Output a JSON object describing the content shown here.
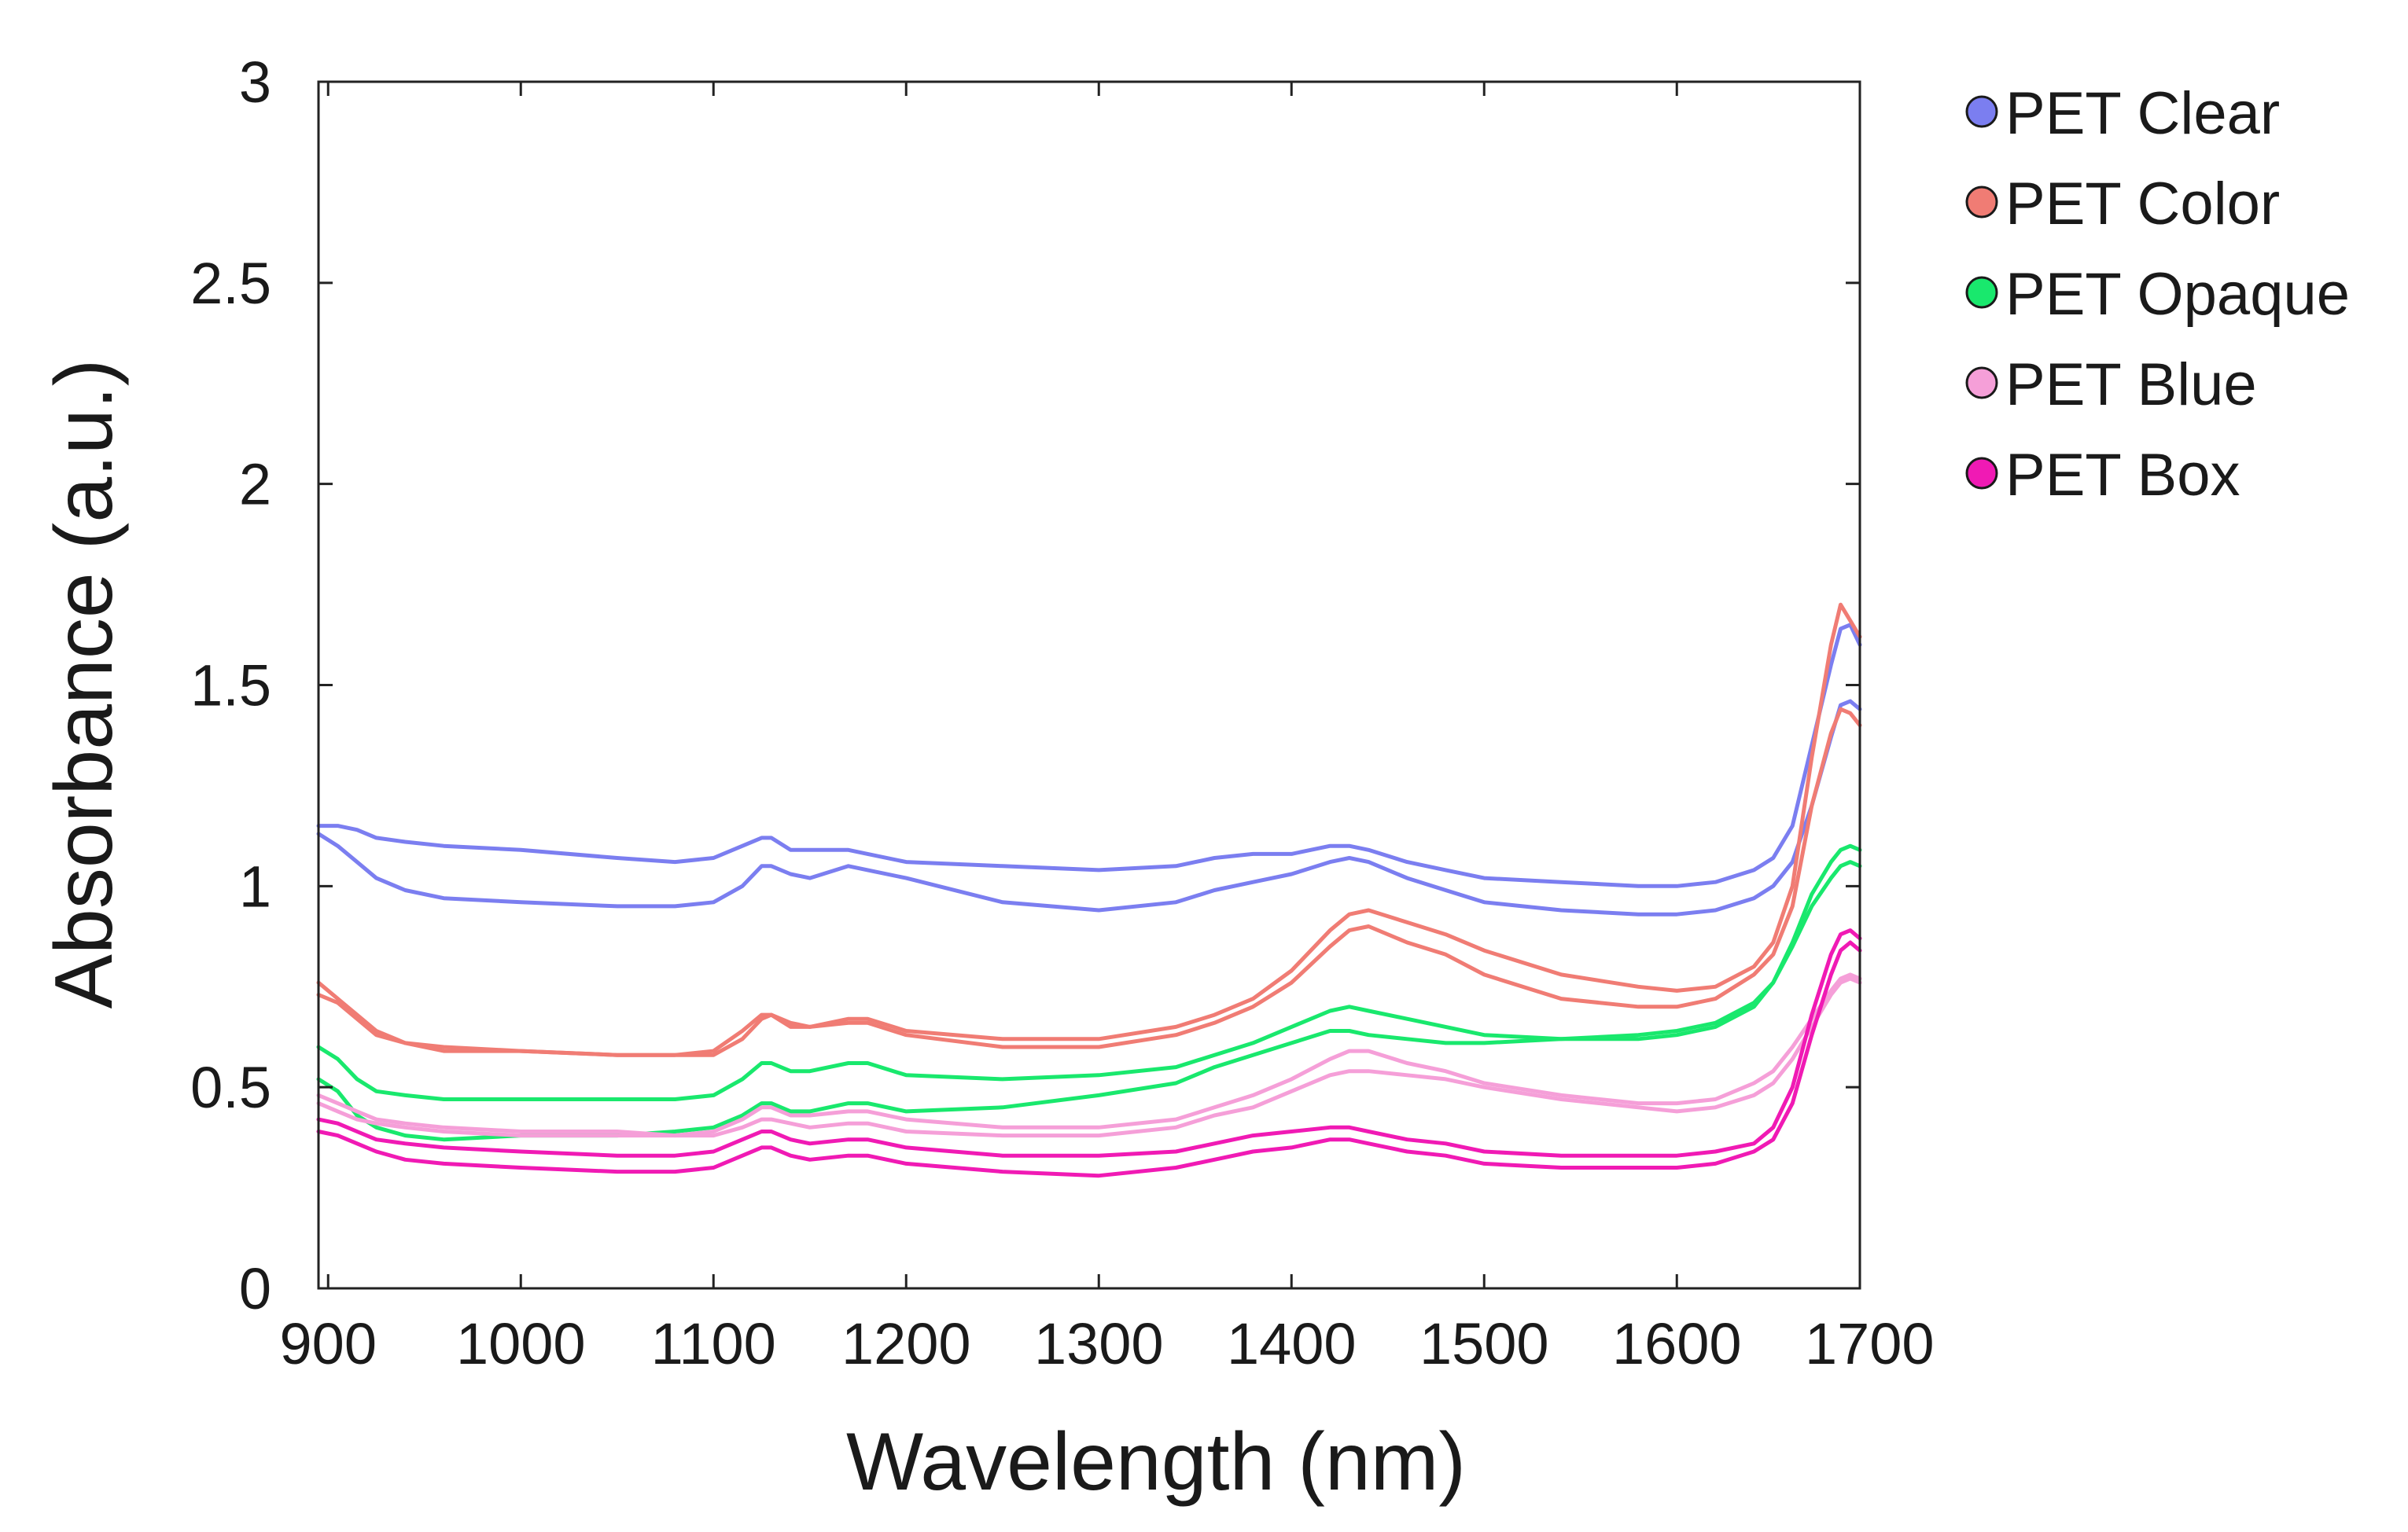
{
  "chart_data": {
    "type": "line",
    "title": "",
    "xlabel": "Wavelength (nm)",
    "ylabel": "Absorbance (a.u.)",
    "xlim": [
      895,
      1695
    ],
    "ylim": [
      0,
      3
    ],
    "grid": false,
    "legend_position": "outside-top-right",
    "x_ticks": [
      900,
      1000,
      1100,
      1200,
      1300,
      1400,
      1500,
      1600,
      1700
    ],
    "x_tick_labels": [
      "900",
      "1000",
      "1100",
      "1200",
      "1300",
      "1400",
      "1500",
      "1600",
      "1700"
    ],
    "y_ticks": [
      0,
      0.5,
      1,
      1.5,
      2,
      2.5,
      3
    ],
    "y_tick_labels": [
      "0",
      "0.5",
      "1",
      "1.5",
      "2",
      "2.5",
      "3"
    ],
    "x": [
      895,
      905,
      915,
      925,
      940,
      960,
      1000,
      1050,
      1080,
      1100,
      1115,
      1125,
      1130,
      1140,
      1150,
      1170,
      1180,
      1200,
      1250,
      1300,
      1340,
      1360,
      1380,
      1400,
      1420,
      1430,
      1440,
      1460,
      1480,
      1500,
      1540,
      1580,
      1600,
      1620,
      1640,
      1650,
      1660,
      1670,
      1680,
      1685,
      1690,
      1695
    ],
    "series": [
      {
        "name": "PET Clear",
        "color": "#7b7ef0",
        "values": [
          1.15,
          1.15,
          1.14,
          1.12,
          1.11,
          1.1,
          1.09,
          1.07,
          1.06,
          1.07,
          1.1,
          1.12,
          1.12,
          1.09,
          1.09,
          1.09,
          1.08,
          1.06,
          1.05,
          1.04,
          1.05,
          1.07,
          1.08,
          1.08,
          1.1,
          1.1,
          1.09,
          1.06,
          1.04,
          1.02,
          1.01,
          1.0,
          1.0,
          1.01,
          1.04,
          1.07,
          1.15,
          1.35,
          1.55,
          1.64,
          1.65,
          1.6
        ]
      },
      {
        "name": "PET Clear",
        "color": "#7b7ef0",
        "values": [
          1.13,
          1.1,
          1.06,
          1.02,
          0.99,
          0.97,
          0.96,
          0.95,
          0.95,
          0.96,
          1.0,
          1.05,
          1.05,
          1.03,
          1.02,
          1.05,
          1.04,
          1.02,
          0.96,
          0.94,
          0.96,
          0.99,
          1.01,
          1.03,
          1.06,
          1.07,
          1.06,
          1.02,
          0.99,
          0.96,
          0.94,
          0.93,
          0.93,
          0.94,
          0.97,
          1.0,
          1.06,
          1.2,
          1.37,
          1.45,
          1.46,
          1.44
        ]
      },
      {
        "name": "PET Color",
        "color": "#f07c74",
        "values": [
          0.76,
          0.72,
          0.68,
          0.64,
          0.61,
          0.6,
          0.59,
          0.58,
          0.58,
          0.59,
          0.64,
          0.68,
          0.68,
          0.66,
          0.65,
          0.67,
          0.67,
          0.64,
          0.62,
          0.62,
          0.65,
          0.68,
          0.72,
          0.79,
          0.89,
          0.93,
          0.94,
          0.91,
          0.88,
          0.84,
          0.78,
          0.75,
          0.74,
          0.75,
          0.8,
          0.86,
          1.0,
          1.32,
          1.6,
          1.7,
          1.66,
          1.62
        ]
      },
      {
        "name": "PET Color",
        "color": "#f07c74",
        "values": [
          0.73,
          0.71,
          0.67,
          0.63,
          0.61,
          0.59,
          0.59,
          0.58,
          0.58,
          0.58,
          0.62,
          0.67,
          0.68,
          0.65,
          0.65,
          0.66,
          0.66,
          0.63,
          0.6,
          0.6,
          0.63,
          0.66,
          0.7,
          0.76,
          0.85,
          0.89,
          0.9,
          0.86,
          0.83,
          0.78,
          0.72,
          0.7,
          0.7,
          0.72,
          0.78,
          0.83,
          0.95,
          1.2,
          1.38,
          1.44,
          1.43,
          1.4
        ]
      },
      {
        "name": "PET Opaque",
        "color": "#19e86d",
        "values": [
          0.6,
          0.57,
          0.52,
          0.49,
          0.48,
          0.47,
          0.47,
          0.47,
          0.47,
          0.48,
          0.52,
          0.56,
          0.56,
          0.54,
          0.54,
          0.56,
          0.56,
          0.53,
          0.52,
          0.53,
          0.55,
          0.58,
          0.61,
          0.65,
          0.69,
          0.7,
          0.69,
          0.67,
          0.65,
          0.63,
          0.62,
          0.62,
          0.63,
          0.65,
          0.7,
          0.76,
          0.86,
          0.98,
          1.06,
          1.09,
          1.1,
          1.09
        ]
      },
      {
        "name": "PET Opaque",
        "color": "#19e86d",
        "values": [
          0.52,
          0.49,
          0.43,
          0.4,
          0.38,
          0.37,
          0.38,
          0.38,
          0.39,
          0.4,
          0.43,
          0.46,
          0.46,
          0.44,
          0.44,
          0.46,
          0.46,
          0.44,
          0.45,
          0.48,
          0.51,
          0.55,
          0.58,
          0.61,
          0.64,
          0.64,
          0.63,
          0.62,
          0.61,
          0.61,
          0.62,
          0.63,
          0.64,
          0.66,
          0.71,
          0.76,
          0.85,
          0.95,
          1.02,
          1.05,
          1.06,
          1.05
        ]
      },
      {
        "name": "PET Blue",
        "color": "#f59fd8",
        "values": [
          0.48,
          0.46,
          0.44,
          0.42,
          0.41,
          0.4,
          0.39,
          0.39,
          0.38,
          0.39,
          0.42,
          0.45,
          0.45,
          0.43,
          0.43,
          0.44,
          0.44,
          0.42,
          0.4,
          0.4,
          0.42,
          0.45,
          0.48,
          0.52,
          0.57,
          0.59,
          0.59,
          0.56,
          0.54,
          0.51,
          0.48,
          0.46,
          0.46,
          0.47,
          0.51,
          0.54,
          0.6,
          0.67,
          0.74,
          0.77,
          0.78,
          0.77
        ]
      },
      {
        "name": "PET Blue",
        "color": "#f59fd8",
        "values": [
          0.46,
          0.44,
          0.42,
          0.41,
          0.4,
          0.39,
          0.38,
          0.38,
          0.38,
          0.38,
          0.4,
          0.42,
          0.42,
          0.41,
          0.4,
          0.41,
          0.41,
          0.39,
          0.38,
          0.38,
          0.4,
          0.43,
          0.45,
          0.49,
          0.53,
          0.54,
          0.54,
          0.53,
          0.52,
          0.5,
          0.47,
          0.45,
          0.44,
          0.45,
          0.48,
          0.51,
          0.57,
          0.65,
          0.73,
          0.76,
          0.77,
          0.76
        ]
      },
      {
        "name": "PET Box",
        "color": "#f01ab4",
        "values": [
          0.42,
          0.41,
          0.39,
          0.37,
          0.36,
          0.35,
          0.34,
          0.33,
          0.33,
          0.34,
          0.37,
          0.39,
          0.39,
          0.37,
          0.36,
          0.37,
          0.37,
          0.35,
          0.33,
          0.33,
          0.34,
          0.36,
          0.38,
          0.39,
          0.4,
          0.4,
          0.39,
          0.37,
          0.36,
          0.34,
          0.33,
          0.33,
          0.33,
          0.34,
          0.36,
          0.4,
          0.5,
          0.68,
          0.83,
          0.88,
          0.89,
          0.87
        ]
      },
      {
        "name": "PET Box",
        "color": "#f01ab4",
        "values": [
          0.39,
          0.38,
          0.36,
          0.34,
          0.32,
          0.31,
          0.3,
          0.29,
          0.29,
          0.3,
          0.33,
          0.35,
          0.35,
          0.33,
          0.32,
          0.33,
          0.33,
          0.31,
          0.29,
          0.28,
          0.3,
          0.32,
          0.34,
          0.35,
          0.37,
          0.37,
          0.36,
          0.34,
          0.33,
          0.31,
          0.3,
          0.3,
          0.3,
          0.31,
          0.34,
          0.37,
          0.46,
          0.63,
          0.78,
          0.84,
          0.86,
          0.84
        ]
      }
    ],
    "legend": [
      {
        "label": "PET Clear",
        "color": "#7b7ef0"
      },
      {
        "label": "PET Color",
        "color": "#f07c74"
      },
      {
        "label": "PET Opaque",
        "color": "#19e86d"
      },
      {
        "label": "PET Blue",
        "color": "#f59fd8"
      },
      {
        "label": "PET Box",
        "color": "#f01ab4"
      }
    ]
  }
}
